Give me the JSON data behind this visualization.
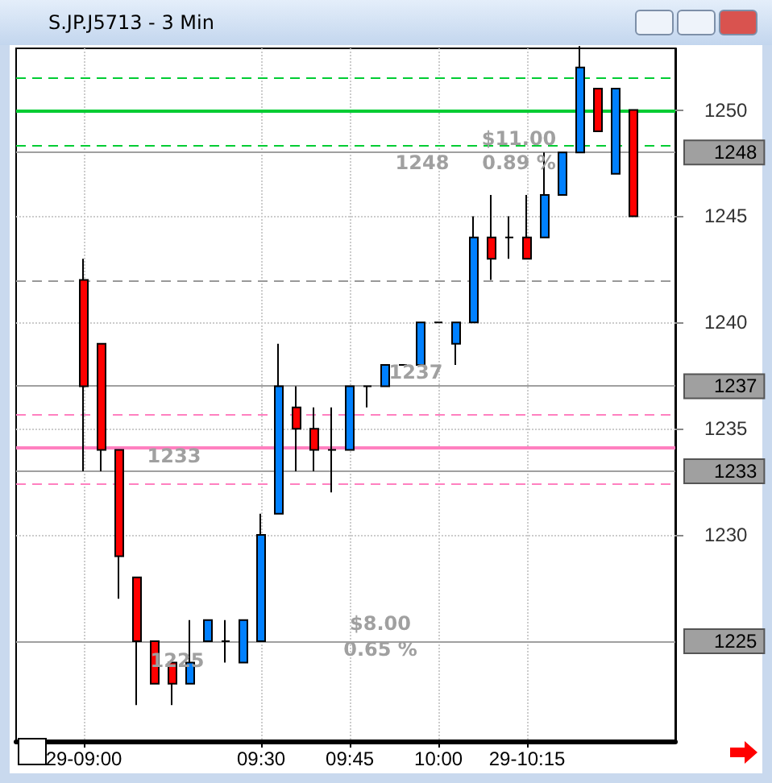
{
  "chart_data": {
    "type": "candlestick",
    "title": "S.JP.J5713 - 3 Min",
    "x": [
      9,
      9.05,
      9.1,
      9.15,
      9.2,
      9.25,
      9.3,
      9.35,
      9.4,
      9.45,
      9.5,
      9.55,
      9.6,
      9.65,
      9.7,
      9.75,
      9.8,
      9.85,
      9.9,
      9.95,
      10,
      10.05,
      10.1,
      10.15,
      10.2,
      10.25,
      10.3,
      10.35,
      10.4,
      10.45,
      10.5,
      10.55
    ],
    "ohlc": [
      [
        1242,
        1243,
        1233,
        1237
      ],
      [
        1239,
        1239,
        1233,
        1234
      ],
      [
        1234,
        1234,
        1227,
        1229
      ],
      [
        1228,
        1228,
        1222,
        1225
      ],
      [
        1225,
        1225,
        1223,
        1223
      ],
      [
        1224,
        1224,
        1222,
        1223
      ],
      [
        1223,
        1226,
        1223,
        1224
      ],
      [
        1225,
        1226,
        1225,
        1226
      ],
      [
        1225,
        1226,
        1224,
        1225
      ],
      [
        1224,
        1226,
        1224,
        1226
      ],
      [
        1225,
        1231,
        1225,
        1230
      ],
      [
        1231,
        1239,
        1231,
        1237
      ],
      [
        1236,
        1237,
        1233,
        1235
      ],
      [
        1235,
        1236,
        1233,
        1234
      ],
      [
        1234,
        1236,
        1232,
        1234
      ],
      [
        1234,
        1237,
        1234,
        1237
      ],
      [
        1237,
        1237,
        1236,
        1237
      ],
      [
        1237,
        1238,
        1237,
        1238
      ],
      [
        1238,
        1238,
        1238,
        1238
      ],
      [
        1238,
        1240,
        1238,
        1240
      ],
      [
        1240,
        1240,
        1240,
        1240
      ],
      [
        1239,
        1240,
        1238,
        1240
      ],
      [
        1240,
        1245,
        1240,
        1244
      ],
      [
        1244,
        1246,
        1242,
        1243
      ],
      [
        1244,
        1245,
        1243,
        1244
      ],
      [
        1244,
        1246,
        1243,
        1243
      ],
      [
        1244,
        1248,
        1244,
        1246
      ],
      [
        1246,
        1248,
        1246,
        1248
      ],
      [
        1248,
        1253,
        1248,
        1252
      ],
      [
        1251,
        1251,
        1249,
        1249
      ],
      [
        1247,
        1251,
        1247,
        1251
      ],
      [
        1250,
        1250,
        1245,
        1245
      ]
    ],
    "colors": [
      "#ff0000",
      "#ff0000",
      "#ff0000",
      "#ff0000",
      "#ff0000",
      "#ff0000",
      "#0080ff",
      "#0080ff",
      "#000000",
      "#0080ff",
      "#0080ff",
      "#0080ff",
      "#ff0000",
      "#ff0000",
      "#000000",
      "#0080ff",
      "#000000",
      "#0080ff",
      "#000000",
      "#0080ff",
      "#000000",
      "#0080ff",
      "#0080ff",
      "#ff0000",
      "#000000",
      "#ff0000",
      "#0080ff",
      "#0080ff",
      "#0080ff",
      "#ff0000",
      "#0080ff",
      "#ff0000"
    ],
    "xlim": [
      8.809,
      10.668
    ],
    "xticks": [
      {
        "value": 9,
        "label": "29-09:00"
      },
      {
        "value": 9.5,
        "label": "09:30"
      },
      {
        "value": 9.75,
        "label": "09:45"
      },
      {
        "value": 10,
        "label": "10:00"
      },
      {
        "value": 10.25,
        "label": "29-10:15"
      }
    ],
    "ylim": [
      1220.3,
      1252.9
    ],
    "yticks": [
      1230,
      1235,
      1240,
      1245,
      1250
    ],
    "grid": true,
    "ref_lines": [
      {
        "axis": "y",
        "value": 1251.5,
        "color": "#00cc33",
        "line_style": "dashed"
      },
      {
        "axis": "y",
        "value": 1250,
        "color": "#00cc33",
        "line_style": "solid"
      },
      {
        "axis": "y",
        "value": 1248.3,
        "color": "#00cc33",
        "line_style": "dashed"
      },
      {
        "axis": "y",
        "value": 1242,
        "color": "#999999",
        "line_style": "dashed"
      },
      {
        "axis": "y",
        "value": 1235.7,
        "color": "#ff80c0",
        "line_style": "dashed"
      },
      {
        "axis": "y",
        "value": 1234.1,
        "color": "#ff80c0",
        "line_style": "solid"
      },
      {
        "axis": "y",
        "value": 1232.4,
        "color": "#ff80c0",
        "line_style": "dashed"
      },
      {
        "axis": "y",
        "value": 1248,
        "label": "1248",
        "color": "#a0a0a0",
        "line_style": "solid"
      },
      {
        "axis": "y",
        "value": 1237,
        "label": "1237",
        "color": "#a0a0a0",
        "line_style": "solid"
      },
      {
        "axis": "y",
        "value": 1233,
        "label": "1233",
        "color": "#a0a0a0",
        "line_style": "solid"
      },
      {
        "axis": "y",
        "value": 1225,
        "label": "1225",
        "color": "#a0a0a0",
        "line_style": "solid"
      }
    ],
    "annotations": [
      "$11.00",
      "0.89 %",
      "1248",
      "1237",
      "1233",
      "1225",
      "$8.00",
      "0.65 %"
    ]
  }
}
